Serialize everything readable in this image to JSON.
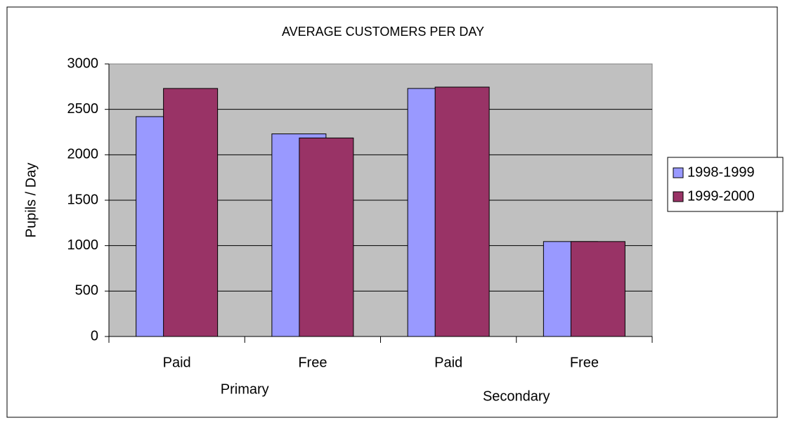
{
  "chart_data": {
    "type": "bar",
    "title": "AVERAGE CUSTOMERS PER DAY",
    "y_label": "Pupils / Day",
    "categories": [
      "Paid",
      "Free",
      "Paid",
      "Free"
    ],
    "category_groups": [
      "Primary",
      "Secondary"
    ],
    "series": [
      {
        "name": "1998-1999",
        "color": "#9999ff",
        "values": [
          2420,
          2230,
          2730,
          1045
        ]
      },
      {
        "name": "1999-2000",
        "color": "#993366",
        "values": [
          2730,
          2185,
          2745,
          1045
        ]
      }
    ],
    "ylim": [
      0,
      3000
    ],
    "yticks": [
      0,
      500,
      1000,
      1500,
      2000,
      2500,
      3000
    ],
    "grid": true,
    "legend": "right"
  }
}
